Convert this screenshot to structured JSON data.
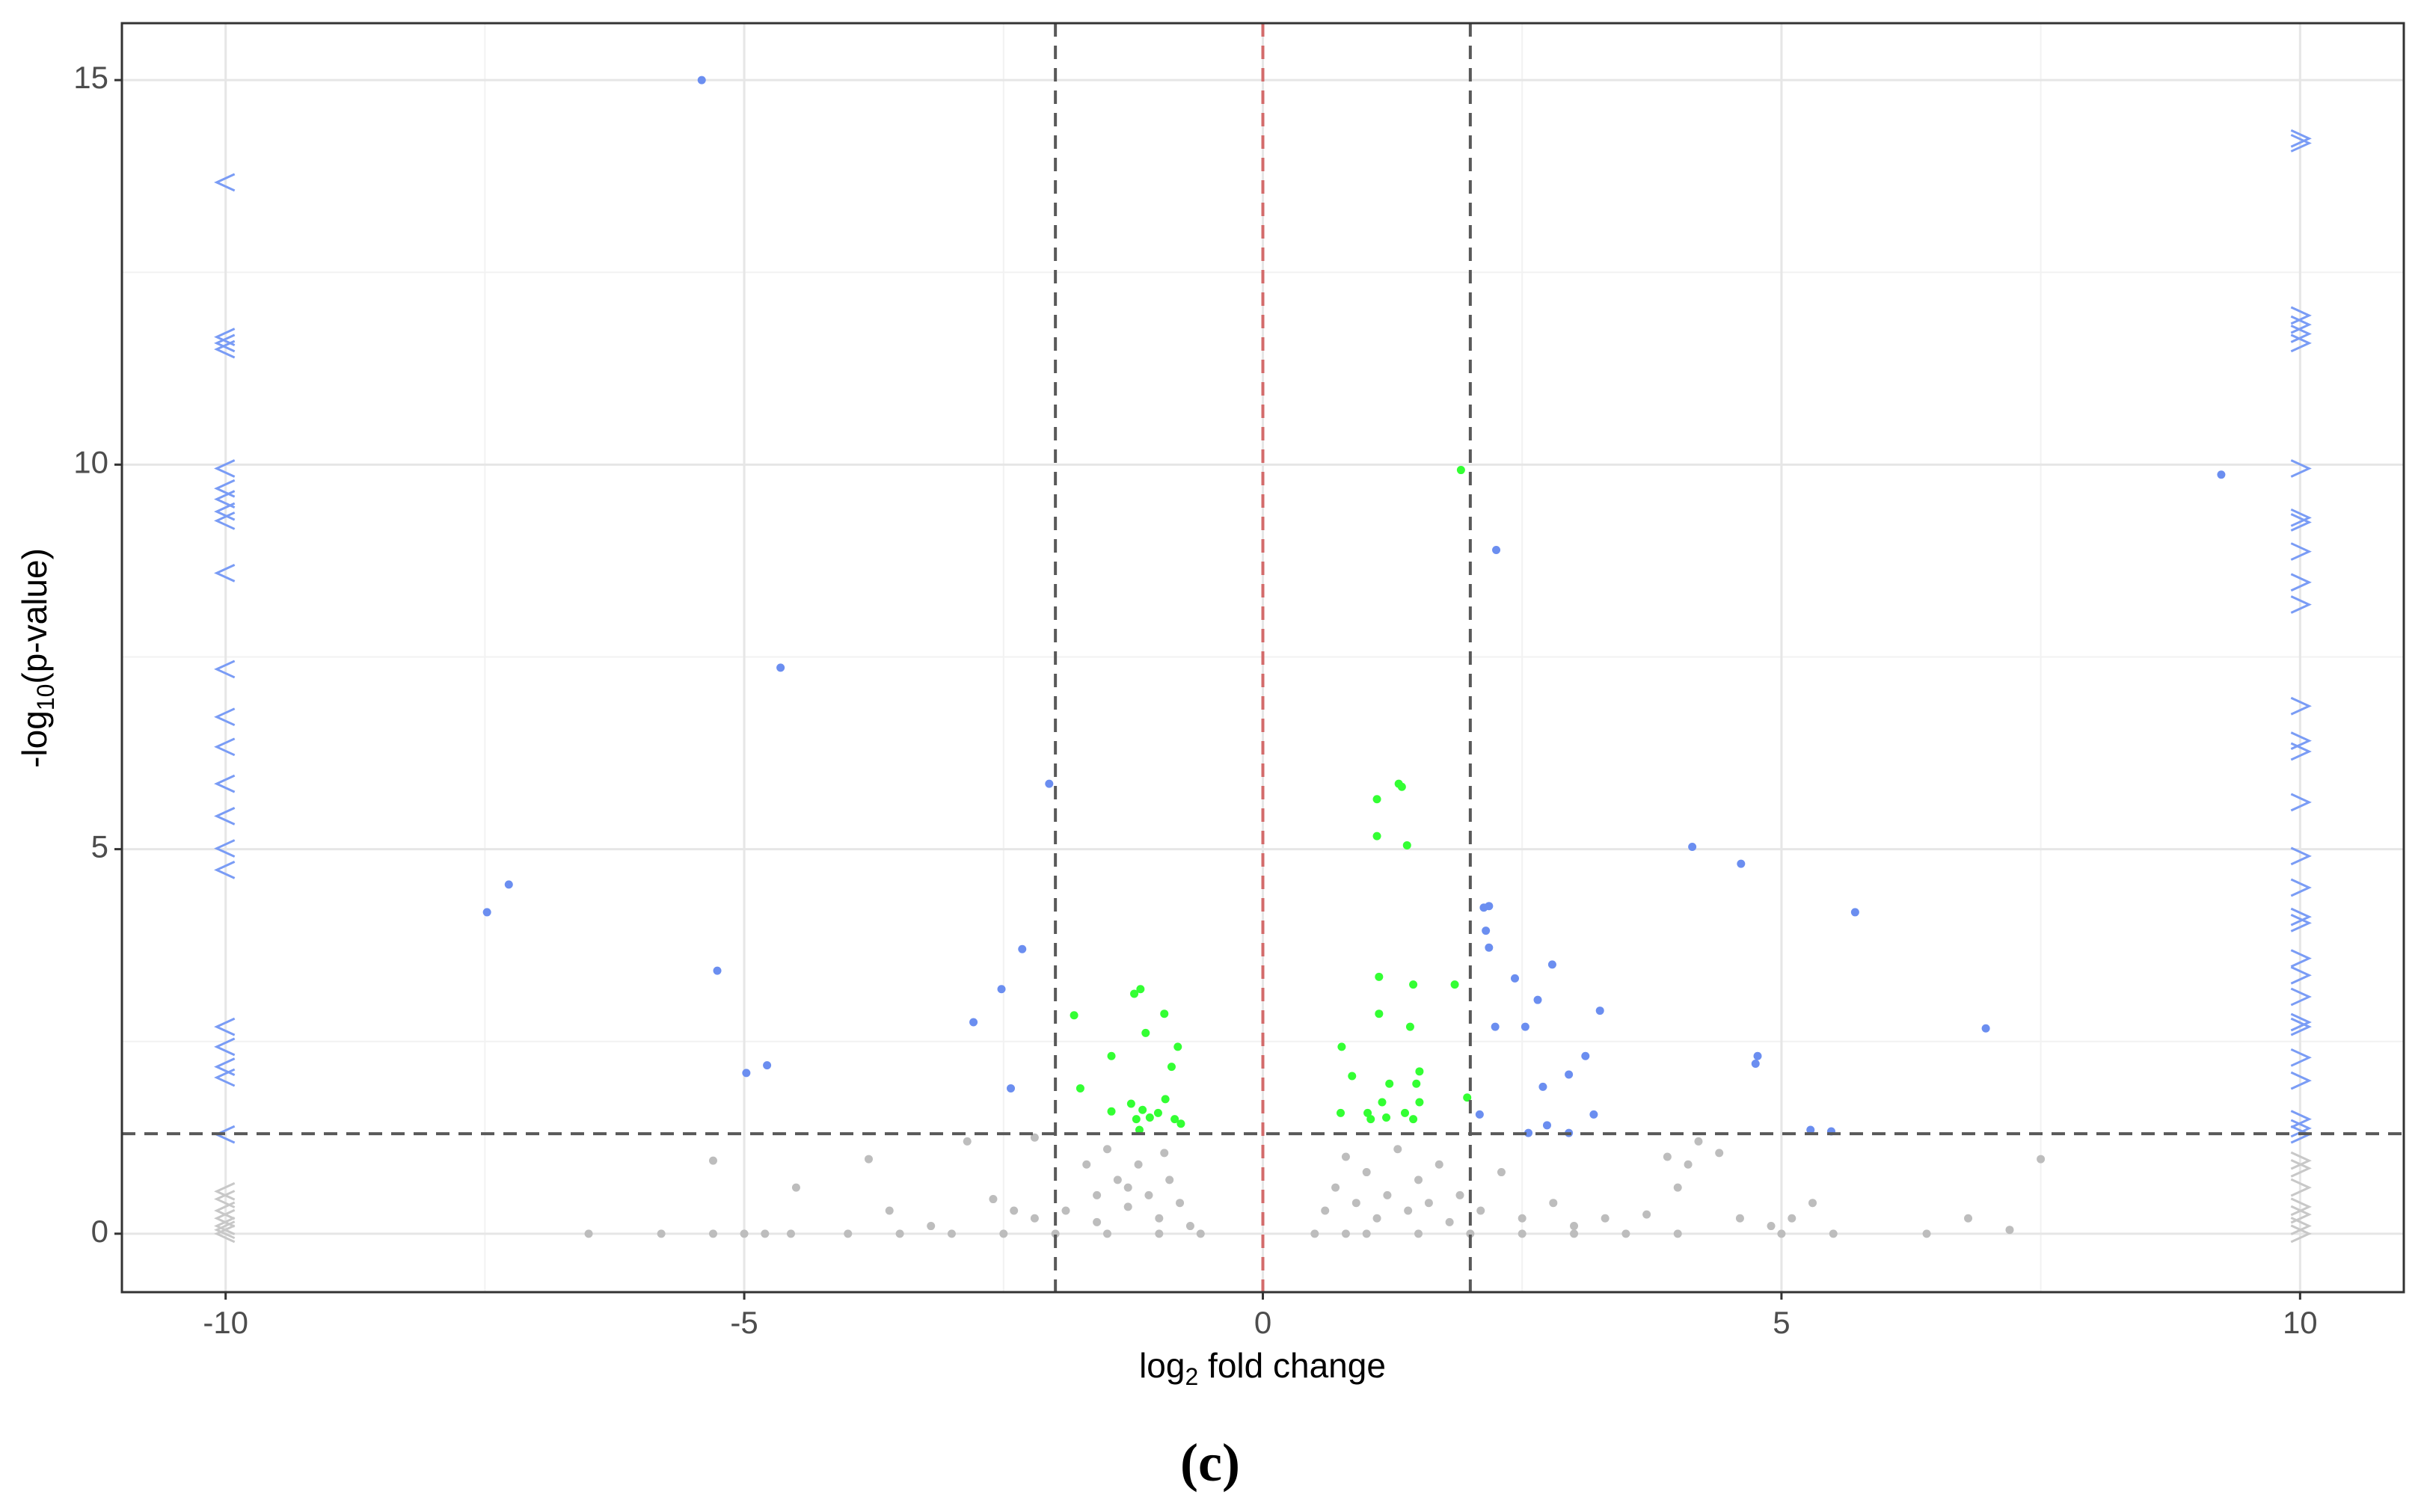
{
  "chart_data": {
    "type": "scatter",
    "caption": "(c)",
    "x_label": [
      "log",
      "2",
      " fold change"
    ],
    "y_label": [
      "-log",
      "10",
      "(p-value)"
    ],
    "xlim": [
      -11,
      11
    ],
    "ylim": [
      -0.76,
      15.74
    ],
    "xticks": [
      -10,
      -5,
      0,
      5,
      10
    ],
    "yticks": [
      0,
      5,
      10,
      15
    ],
    "x_minor_ticks": [
      -7.5,
      -2.5,
      2.5,
      7.5
    ],
    "y_minor_ticks": [
      2.5,
      7.5,
      12.5
    ],
    "grid": true,
    "vlines": [
      {
        "x": -2,
        "color": "#595959"
      },
      {
        "x": 0,
        "color": "#d36b6b"
      },
      {
        "x": 2,
        "color": "#595959"
      }
    ],
    "hlines": [
      {
        "y": 1.3,
        "color": "#595959"
      }
    ],
    "series": [
      {
        "color": "#bdbdbd",
        "shape": "circle",
        "x": [
          -6.5,
          -5.8,
          -5.3,
          -5.3,
          -5.0,
          -4.8,
          -4.55,
          -4.5,
          -3.8,
          -3.6,
          -3.2,
          -2.85,
          -2.6,
          -2.4,
          -2.2,
          -2.2,
          -1.9,
          -1.7,
          -1.6,
          -1.5,
          -1.4,
          -1.3,
          -1.2,
          -1.1,
          -1.0,
          -0.9,
          -0.8,
          -0.7,
          -1.6,
          -1.3,
          -0.95,
          -3,
          -2.5,
          -2,
          -1.5,
          -1,
          -0.6,
          -4,
          -3.5,
          0.5,
          0.6,
          0.7,
          0.8,
          0.9,
          1.0,
          1.1,
          1.2,
          1.3,
          1.4,
          1.5,
          1.6,
          1.7,
          1.8,
          1.9,
          2.1,
          2.3,
          2.5,
          2.8,
          3.0,
          3.3,
          3.7,
          3.9,
          4.0,
          4.1,
          4.2,
          4.4,
          4.6,
          4.9,
          5.1,
          5.3,
          5.5,
          6.4,
          6.8,
          7.2,
          7.5,
          1,
          2,
          3,
          4,
          5,
          1.5,
          2.5,
          3.5,
          0.8
        ],
        "y": [
          0,
          0,
          0,
          0.95,
          0,
          0,
          0,
          0.6,
          0.97,
          0.3,
          0.1,
          1.2,
          0.45,
          0.3,
          0.2,
          1.25,
          0.3,
          0.9,
          0.5,
          1.1,
          0.7,
          0.35,
          0.9,
          0.5,
          0.2,
          0.7,
          0.4,
          0.1,
          0.15,
          0.6,
          1.05,
          0,
          0,
          0,
          0,
          0,
          0,
          0,
          0,
          0,
          0.3,
          0.6,
          1.0,
          0.4,
          0.8,
          0.2,
          0.5,
          1.1,
          0.3,
          0.7,
          0.4,
          0.9,
          0.15,
          0.5,
          0.3,
          0.8,
          0.2,
          0.4,
          0.1,
          0.2,
          0.25,
          1.0,
          0.6,
          0.9,
          1.2,
          1.05,
          0.2,
          0.1,
          0.2,
          0.4,
          0,
          0,
          0.2,
          0.05,
          0.97,
          0,
          0,
          0,
          0,
          0,
          0,
          0,
          0,
          0
        ]
      },
      {
        "color": "#33ff33",
        "shape": "circle",
        "x": [
          1.91,
          1.31,
          1.34,
          1.1,
          1.1,
          1.39,
          -1.24,
          -1.18,
          1.12,
          1.45,
          1.85,
          -1.82,
          -0.95,
          1.12,
          -1.46,
          -1.13,
          -0.82,
          0.76,
          1.42,
          1.51,
          -0.88,
          0.86,
          -1.76,
          1.22,
          1.48,
          -0.94,
          1.15,
          1.97,
          1.51,
          -1.27,
          -1.16,
          -1.46,
          -1.01,
          0.75,
          1.01,
          1.37,
          -1.22,
          -1.09,
          -0.85,
          -0.79,
          -1.19,
          1.19,
          1.45,
          1.04
        ],
        "y": [
          9.93,
          5.85,
          5.81,
          5.65,
          5.17,
          5.05,
          3.12,
          3.18,
          3.34,
          3.24,
          3.24,
          2.84,
          2.86,
          2.86,
          2.31,
          2.61,
          2.43,
          2.43,
          2.69,
          2.11,
          2.17,
          2.05,
          1.89,
          1.95,
          1.95,
          1.75,
          1.71,
          1.77,
          1.71,
          1.69,
          1.61,
          1.59,
          1.57,
          1.57,
          1.57,
          1.57,
          1.49,
          1.51,
          1.49,
          1.43,
          1.35,
          1.51,
          1.49,
          1.49
        ]
      },
      {
        "color": "#6b8ef0",
        "shape": "circle",
        "x": [
          -5.41,
          -7.27,
          -7.48,
          -4.65,
          -5.26,
          -4.98,
          -4.78,
          -2.06,
          -2.32,
          -2.52,
          -2.79,
          -2.43,
          9.24,
          2.25,
          4.14,
          4.61,
          5.71,
          2.13,
          2.18,
          2.15,
          2.18,
          2.43,
          2.79,
          2.65,
          2.24,
          2.53,
          3.25,
          3.11,
          2.95,
          2.7,
          6.97,
          4.77,
          4.75,
          2.74,
          3.19,
          2.56,
          2.95,
          2.09,
          5.28,
          5.48
        ],
        "y": [
          15.0,
          4.54,
          4.18,
          7.36,
          3.42,
          2.09,
          2.19,
          5.85,
          3.7,
          3.18,
          2.75,
          1.89,
          9.87,
          8.89,
          5.03,
          4.81,
          4.18,
          4.24,
          4.26,
          3.94,
          3.72,
          3.32,
          3.5,
          3.04,
          2.69,
          2.69,
          2.9,
          2.31,
          2.07,
          1.91,
          2.67,
          2.31,
          2.21,
          1.41,
          1.55,
          1.31,
          1.31,
          1.55,
          1.35,
          1.33
        ]
      },
      {
        "color": "#7a9cf5",
        "shape": "<",
        "x": [
          -10,
          -10,
          -10,
          -10,
          -10,
          -10,
          -10,
          -10,
          -10,
          -10,
          -10,
          -10,
          -10,
          -10,
          -10,
          -10,
          -10,
          -10,
          -10,
          -10,
          -10,
          -10
        ],
        "y": [
          13.67,
          11.66,
          11.58,
          11.5,
          9.95,
          9.69,
          9.55,
          9.39,
          9.27,
          8.59,
          7.34,
          6.72,
          6.33,
          5.85,
          5.43,
          5.01,
          4.73,
          2.69,
          2.43,
          2.17,
          2.03,
          1.29
        ]
      },
      {
        "color": "#c8c8c8",
        "shape": "<",
        "x": [
          -10,
          -10,
          -10,
          -10,
          -10,
          -10,
          -10
        ],
        "y": [
          0.55,
          0.45,
          0.3,
          0.2,
          0.1,
          0.05,
          0
        ]
      },
      {
        "color": "#7a9cf5",
        "shape": ">",
        "x": [
          10,
          10,
          10,
          10,
          10,
          10,
          10,
          10,
          10,
          10,
          10,
          10,
          10,
          10,
          10,
          10,
          10,
          10,
          10,
          10,
          10,
          10,
          10,
          10,
          10,
          10,
          10,
          10,
          10,
          10
        ],
        "y": [
          14.24,
          14.18,
          11.94,
          11.82,
          11.7,
          11.58,
          9.95,
          9.31,
          9.25,
          8.87,
          8.47,
          8.18,
          6.86,
          6.41,
          6.27,
          5.61,
          4.91,
          4.5,
          4.12,
          4.04,
          3.58,
          3.36,
          3.08,
          2.75,
          2.69,
          2.29,
          1.99,
          1.49,
          1.37,
          1.29
        ]
      },
      {
        "color": "#c8c8c8",
        "shape": ">",
        "x": [
          10,
          10,
          10,
          10,
          10,
          10,
          10
        ],
        "y": [
          0.95,
          0.85,
          0.6,
          0.35,
          0.25,
          0.1,
          0
        ]
      }
    ]
  }
}
